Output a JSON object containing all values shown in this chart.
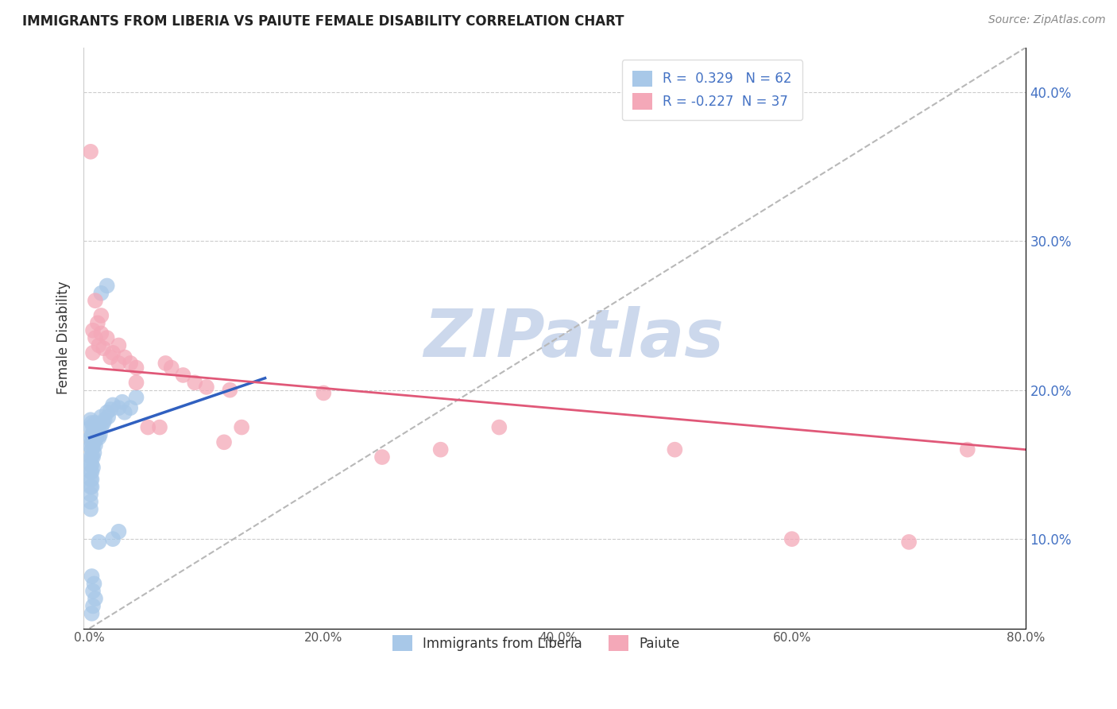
{
  "title": "IMMIGRANTS FROM LIBERIA VS PAIUTE FEMALE DISABILITY CORRELATION CHART",
  "source": "Source: ZipAtlas.com",
  "ylabel": "Female Disability",
  "xlim": [
    -0.005,
    0.8
  ],
  "ylim": [
    0.04,
    0.43
  ],
  "xticks": [
    0.0,
    0.2,
    0.4,
    0.6,
    0.8
  ],
  "yticks": [
    0.1,
    0.2,
    0.3,
    0.4
  ],
  "xticklabels": [
    "0.0%",
    "20.0%",
    "40.0%",
    "60.0%",
    "80.0%"
  ],
  "yticklabels": [
    "10.0%",
    "20.0%",
    "30.0%",
    "40.0%"
  ],
  "legend_labels": [
    "Immigrants from Liberia",
    "Paiute"
  ],
  "r_liberia": 0.329,
  "n_liberia": 62,
  "r_paiute": -0.227,
  "n_paiute": 37,
  "color_liberia": "#a8c8e8",
  "color_paiute": "#f4a8b8",
  "color_line_liberia": "#3060c0",
  "color_line_paiute": "#e05878",
  "color_tick": "#4472c4",
  "color_diag_line": "#b8b8b8",
  "watermark_color": "#ccd8ec",
  "liberia_points": [
    [
      0.001,
      0.168
    ],
    [
      0.001,
      0.162
    ],
    [
      0.001,
      0.155
    ],
    [
      0.001,
      0.15
    ],
    [
      0.001,
      0.145
    ],
    [
      0.001,
      0.14
    ],
    [
      0.001,
      0.135
    ],
    [
      0.001,
      0.13
    ],
    [
      0.001,
      0.125
    ],
    [
      0.001,
      0.12
    ],
    [
      0.001,
      0.175
    ],
    [
      0.001,
      0.18
    ],
    [
      0.002,
      0.17
    ],
    [
      0.002,
      0.165
    ],
    [
      0.002,
      0.16
    ],
    [
      0.002,
      0.155
    ],
    [
      0.002,
      0.15
    ],
    [
      0.002,
      0.145
    ],
    [
      0.002,
      0.14
    ],
    [
      0.002,
      0.135
    ],
    [
      0.002,
      0.178
    ],
    [
      0.003,
      0.168
    ],
    [
      0.003,
      0.162
    ],
    [
      0.003,
      0.155
    ],
    [
      0.003,
      0.148
    ],
    [
      0.003,
      0.175
    ],
    [
      0.004,
      0.165
    ],
    [
      0.004,
      0.158
    ],
    [
      0.004,
      0.172
    ],
    [
      0.005,
      0.17
    ],
    [
      0.005,
      0.163
    ],
    [
      0.005,
      0.178
    ],
    [
      0.006,
      0.168
    ],
    [
      0.006,
      0.175
    ],
    [
      0.007,
      0.172
    ],
    [
      0.008,
      0.168
    ],
    [
      0.008,
      0.175
    ],
    [
      0.009,
      0.17
    ],
    [
      0.01,
      0.175
    ],
    [
      0.01,
      0.182
    ],
    [
      0.012,
      0.178
    ],
    [
      0.013,
      0.18
    ],
    [
      0.015,
      0.185
    ],
    [
      0.016,
      0.182
    ],
    [
      0.018,
      0.187
    ],
    [
      0.02,
      0.19
    ],
    [
      0.025,
      0.188
    ],
    [
      0.028,
      0.192
    ],
    [
      0.03,
      0.185
    ],
    [
      0.035,
      0.188
    ],
    [
      0.04,
      0.195
    ],
    [
      0.008,
      0.098
    ],
    [
      0.005,
      0.06
    ],
    [
      0.003,
      0.065
    ],
    [
      0.002,
      0.075
    ],
    [
      0.004,
      0.07
    ],
    [
      0.02,
      0.1
    ],
    [
      0.025,
      0.105
    ],
    [
      0.003,
      0.055
    ],
    [
      0.002,
      0.05
    ],
    [
      0.015,
      0.27
    ],
    [
      0.01,
      0.265
    ]
  ],
  "paiute_points": [
    [
      0.001,
      0.36
    ],
    [
      0.003,
      0.24
    ],
    [
      0.003,
      0.225
    ],
    [
      0.005,
      0.235
    ],
    [
      0.005,
      0.26
    ],
    [
      0.007,
      0.245
    ],
    [
      0.008,
      0.23
    ],
    [
      0.01,
      0.25
    ],
    [
      0.01,
      0.238
    ],
    [
      0.012,
      0.228
    ],
    [
      0.015,
      0.235
    ],
    [
      0.018,
      0.222
    ],
    [
      0.02,
      0.225
    ],
    [
      0.025,
      0.218
    ],
    [
      0.025,
      0.23
    ],
    [
      0.03,
      0.222
    ],
    [
      0.035,
      0.218
    ],
    [
      0.04,
      0.215
    ],
    [
      0.04,
      0.205
    ],
    [
      0.05,
      0.175
    ],
    [
      0.06,
      0.175
    ],
    [
      0.065,
      0.218
    ],
    [
      0.07,
      0.215
    ],
    [
      0.08,
      0.21
    ],
    [
      0.09,
      0.205
    ],
    [
      0.1,
      0.202
    ],
    [
      0.115,
      0.165
    ],
    [
      0.12,
      0.2
    ],
    [
      0.13,
      0.175
    ],
    [
      0.2,
      0.198
    ],
    [
      0.25,
      0.155
    ],
    [
      0.3,
      0.16
    ],
    [
      0.35,
      0.175
    ],
    [
      0.5,
      0.16
    ],
    [
      0.6,
      0.1
    ],
    [
      0.7,
      0.098
    ],
    [
      0.75,
      0.16
    ]
  ],
  "trend_liberia": [
    0.0,
    0.15,
    0.168,
    0.208
  ],
  "trend_paiute": [
    0.0,
    0.8,
    0.215,
    0.16
  ]
}
